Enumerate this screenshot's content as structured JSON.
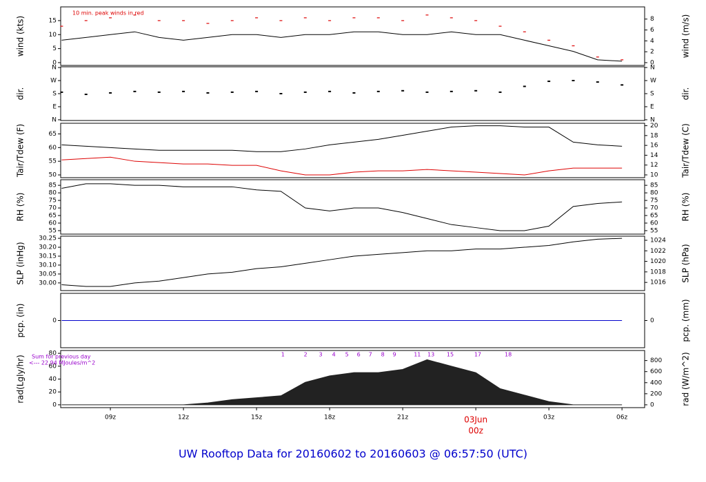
{
  "title": "UW Rooftop Data for 20160602  to  20160603 @ 06:57:50  (UTC)",
  "chart_data": [
    {
      "type": "line",
      "ylabel": "wind (kts)",
      "y2label": "wind (m/s)",
      "annotation": "10 min. peak winds in red",
      "annotation_color": "#dd0000",
      "xlim": [
        6.96,
        30.93
      ],
      "ylim": [
        -1,
        19.9
      ],
      "yticks": [
        0,
        5,
        10,
        15
      ],
      "y2lim": [
        -0.51,
        10.24
      ],
      "y2ticks": [
        0,
        2,
        4,
        6,
        8
      ],
      "x": [
        7,
        8,
        9,
        10,
        11,
        12,
        13,
        14,
        15,
        16,
        17,
        18,
        19,
        20,
        21,
        22,
        23,
        24,
        25,
        26,
        27,
        28,
        29,
        30
      ],
      "series": [
        {
          "color": "#000000",
          "style": "line",
          "values": [
            8,
            9,
            10,
            11,
            9,
            8,
            9,
            10,
            10,
            9,
            10,
            10,
            11,
            11,
            10,
            10,
            11,
            10,
            10,
            8,
            6,
            4,
            1,
            0.5
          ]
        },
        {
          "color": "#dd0000",
          "style": "dash",
          "values": [
            13,
            15,
            16,
            17,
            15,
            15,
            14,
            15,
            16,
            15,
            16,
            15,
            16,
            16,
            15,
            17,
            16,
            15,
            13,
            11,
            8,
            6,
            2,
            1
          ]
        }
      ]
    },
    {
      "type": "scatter",
      "ylabel": "dir.",
      "y2label": "dir.",
      "xlim": [
        6.96,
        30.93
      ],
      "ylim": [
        -5,
        365
      ],
      "yticks": [
        {
          "value": 0,
          "label": "N"
        },
        {
          "value": 90,
          "label": "E"
        },
        {
          "value": 180,
          "label": "S"
        },
        {
          "value": 270,
          "label": "W"
        },
        {
          "value": 360,
          "label": "N"
        }
      ],
      "y2lim": [
        -5,
        365
      ],
      "y2ticks": [
        {
          "value": 0,
          "label": "N"
        },
        {
          "value": 90,
          "label": "E"
        },
        {
          "value": 180,
          "label": "S"
        },
        {
          "value": 270,
          "label": "W"
        },
        {
          "value": 360,
          "label": "N"
        }
      ],
      "x": [
        7,
        8,
        9,
        10,
        11,
        12,
        13,
        14,
        15,
        16,
        17,
        18,
        19,
        20,
        21,
        22,
        23,
        24,
        25,
        26,
        27,
        28,
        29,
        30
      ],
      "series": [
        {
          "color": "#000000",
          "style": "dots",
          "values": [
            190,
            175,
            185,
            195,
            190,
            195,
            185,
            190,
            195,
            180,
            190,
            195,
            185,
            195,
            200,
            190,
            195,
            200,
            190,
            230,
            265,
            270,
            260,
            240
          ]
        }
      ]
    },
    {
      "type": "line",
      "ylabel": "Tair/Tdew (F)",
      "y2label": "Tair/Tdew (C)",
      "xlim": [
        6.96,
        30.93
      ],
      "ylim": [
        49,
        68.9
      ],
      "yticks": [
        50,
        55,
        60,
        65
      ],
      "y2lim": [
        9.44,
        20.5
      ],
      "y2ticks": [
        10,
        12,
        14,
        16,
        18,
        20
      ],
      "x": [
        7,
        8,
        9,
        10,
        11,
        12,
        13,
        14,
        15,
        16,
        17,
        18,
        19,
        20,
        21,
        22,
        23,
        24,
        25,
        26,
        27,
        28,
        29,
        30
      ],
      "series": [
        {
          "color": "#000000",
          "style": "line",
          "values": [
            61,
            60.5,
            60,
            59.5,
            59,
            59,
            59,
            59,
            58.5,
            58.5,
            59.5,
            61,
            62,
            63,
            64.5,
            66,
            67.5,
            68,
            68,
            67.5,
            67.5,
            62,
            61,
            60.5
          ]
        },
        {
          "color": "#dd0000",
          "style": "line",
          "values": [
            55.5,
            56,
            56.5,
            55,
            54.5,
            54,
            54,
            53.5,
            53.5,
            51.5,
            50,
            50,
            51,
            51.5,
            51.5,
            52,
            51.5,
            51,
            50.5,
            50,
            51.5,
            52.5,
            52.5,
            52.5
          ]
        }
      ]
    },
    {
      "type": "line",
      "ylabel": "RH (%)",
      "y2label": "RH (%)",
      "xlim": [
        6.96,
        30.93
      ],
      "ylim": [
        52.7,
        88.7
      ],
      "yticks": [
        55,
        60,
        65,
        70,
        75,
        80,
        85
      ],
      "y2lim": [
        52.7,
        88.7
      ],
      "y2ticks": [
        55,
        60,
        65,
        70,
        75,
        80,
        85
      ],
      "x": [
        7,
        8,
        9,
        10,
        11,
        12,
        13,
        14,
        15,
        16,
        17,
        18,
        19,
        20,
        21,
        22,
        23,
        24,
        25,
        26,
        27,
        28,
        29,
        30
      ],
      "series": [
        {
          "color": "#000000",
          "style": "line",
          "values": [
            83,
            86,
            86,
            85,
            85,
            84,
            84,
            84,
            82,
            81,
            70,
            68,
            70,
            70,
            67,
            63,
            59,
            57,
            55,
            55,
            58,
            71,
            73,
            74
          ]
        }
      ]
    },
    {
      "type": "line",
      "ylabel": "SLP (inHg)",
      "y2label": "SLP (hPa)",
      "xlim": [
        6.96,
        30.93
      ],
      "ylim": [
        29.957,
        30.262
      ],
      "yticks": [
        {
          "value": 30,
          "label": "30.00"
        },
        30.05,
        {
          "value": 30.1,
          "label": "30.10"
        },
        30.15,
        {
          "value": 30.2,
          "label": "30.20"
        },
        30.25
      ],
      "y2lim": [
        1014.45,
        1024.78
      ],
      "y2ticks": [
        1016,
        1018,
        1020,
        1022,
        1024
      ],
      "x": [
        7,
        8,
        9,
        10,
        11,
        12,
        13,
        14,
        15,
        16,
        17,
        18,
        19,
        20,
        21,
        22,
        23,
        24,
        25,
        26,
        27,
        28,
        29,
        30
      ],
      "series": [
        {
          "color": "#000000",
          "style": "line",
          "values": [
            29.99,
            29.98,
            29.98,
            30.0,
            30.01,
            30.03,
            30.05,
            30.06,
            30.08,
            30.09,
            30.11,
            30.13,
            30.15,
            30.16,
            30.17,
            30.18,
            30.18,
            30.19,
            30.19,
            30.2,
            30.21,
            30.23,
            30.245,
            30.25
          ]
        }
      ]
    },
    {
      "type": "line",
      "ylabel": "pcp. (in)",
      "y2label": "pcp. (mm)",
      "xlim": [
        6.96,
        30.93
      ],
      "ylim": [
        -1,
        1
      ],
      "yticks": [
        0
      ],
      "y2lim": [
        -25.4,
        25.4
      ],
      "y2ticks": [
        0
      ],
      "x": [
        7,
        8,
        9,
        10,
        11,
        12,
        13,
        14,
        15,
        16,
        17,
        18,
        19,
        20,
        21,
        22,
        23,
        24,
        25,
        26,
        27,
        28,
        29,
        30
      ],
      "series": [
        {
          "color": "#0000cc",
          "style": "line",
          "values": [
            0,
            0,
            0,
            0,
            0,
            0,
            0,
            0,
            0,
            0,
            0,
            0,
            0,
            0,
            0,
            0,
            0,
            0,
            0,
            0,
            0,
            0,
            0,
            0
          ]
        }
      ]
    },
    {
      "type": "area",
      "ylabel": "rad(Lgly/hr)",
      "y2label": "rad (W/m^2)",
      "annotation": "Sum for previous day",
      "annotation2": "<--- 22.94 MJoules/m^2",
      "annotation_color": "#9900cc",
      "xlim": [
        6.96,
        30.93
      ],
      "ylim": [
        -4.4,
        84.4
      ],
      "yticks": [
        0,
        20,
        40,
        60,
        80
      ],
      "y2lim": [
        -51,
        982
      ],
      "y2ticks": [
        0,
        200,
        400,
        600,
        800
      ],
      "xticks": [
        {
          "value": 9,
          "label": "09z"
        },
        {
          "value": 12,
          "label": "12z"
        },
        {
          "value": 15,
          "label": "15z"
        },
        {
          "value": 18,
          "label": "18z"
        },
        {
          "value": 21,
          "label": "21z"
        },
        {
          "value": 24,
          "label": "00z"
        },
        {
          "value": 27,
          "label": "03z"
        },
        {
          "value": 30,
          "label": "06z"
        }
      ],
      "date_annotation": {
        "x": 24,
        "label": "03Jun",
        "color": "#dd0000"
      },
      "hour_marks": {
        "color": "#9900cc",
        "x": [
          16.08,
          17.01,
          17.63,
          18.17,
          18.71,
          19.19,
          19.67,
          20.18,
          20.66,
          21.6,
          22.16,
          22.95,
          24.08,
          25.33
        ],
        "labels": [
          "1",
          "2",
          "3",
          "4",
          "5",
          "6",
          "7",
          "8",
          "9",
          "11",
          "13",
          "15",
          "17",
          "18"
        ]
      },
      "x": [
        7,
        8,
        9,
        10,
        11,
        12,
        13,
        14,
        15,
        16,
        17,
        18,
        19,
        20,
        21,
        22,
        23,
        24,
        25,
        26,
        27,
        28,
        29,
        30
      ],
      "series": [
        {
          "color": "#222222",
          "style": "area",
          "values": [
            0,
            0,
            0,
            0,
            0,
            0,
            3,
            8,
            11,
            14,
            35,
            45,
            50,
            50,
            55,
            70,
            60,
            50,
            25,
            15,
            5,
            0,
            0,
            0
          ]
        }
      ]
    }
  ]
}
